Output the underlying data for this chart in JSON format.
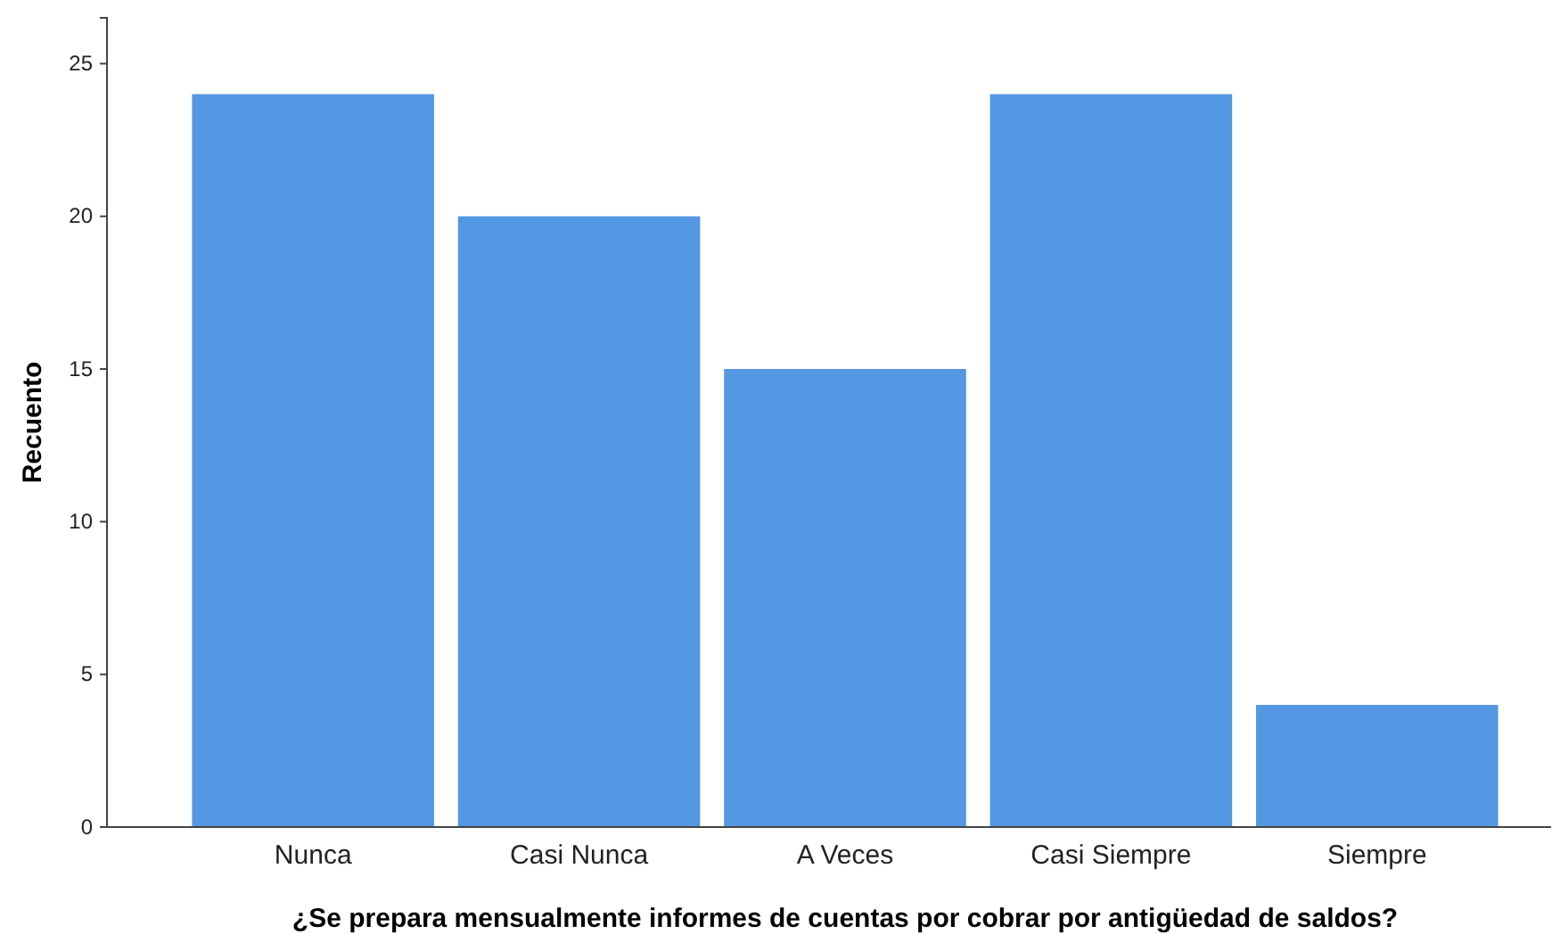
{
  "chart_data": {
    "type": "bar",
    "xlabel": "¿Se prepara mensualmente informes de cuentas por cobrar por antigüedad de saldos?",
    "ylabel": "Recuento",
    "categories": [
      "Nunca",
      "Casi Nunca",
      "A Veces",
      "Casi Siempre",
      "Siempre"
    ],
    "values": [
      24,
      20,
      15,
      24,
      4
    ],
    "color": "#5497e3",
    "ylim": [
      0,
      26.5
    ],
    "yticks": [
      0,
      5,
      10,
      15,
      20,
      25
    ],
    "grid": false
  }
}
